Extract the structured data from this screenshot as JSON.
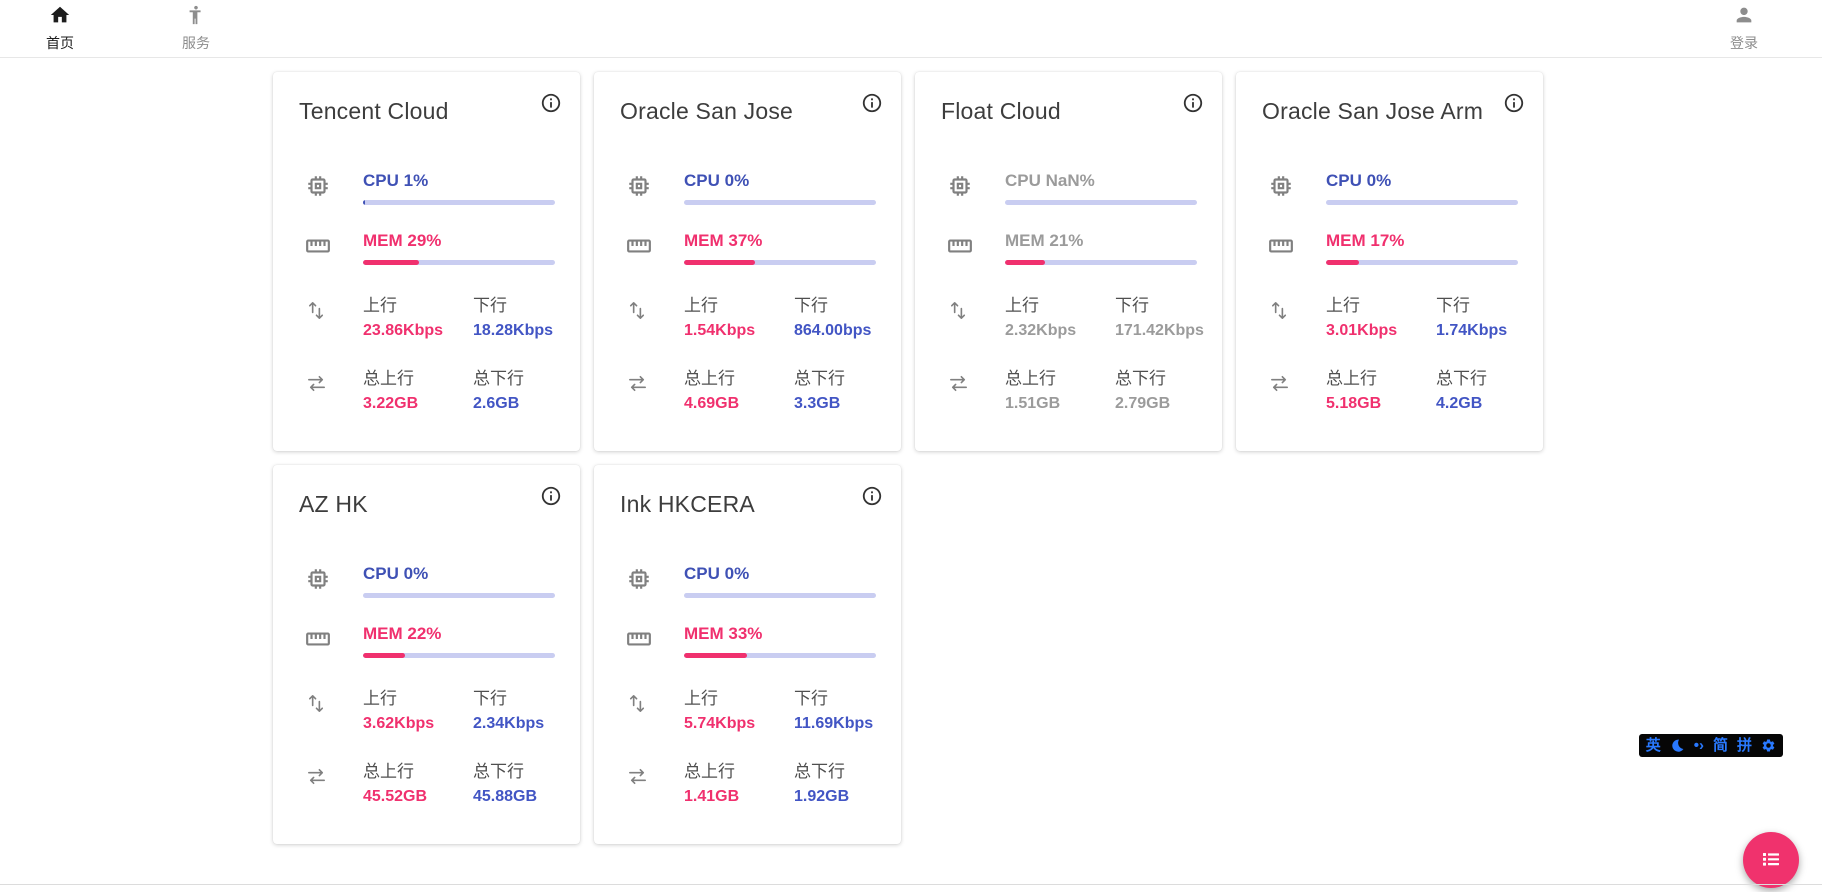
{
  "nav": {
    "home": {
      "label": "首页"
    },
    "services": {
      "label": "服务"
    },
    "login": {
      "label": "登录"
    }
  },
  "labels": {
    "upload": "上行",
    "download": "下行",
    "total_upload": "总上行",
    "total_download": "总下行"
  },
  "colors": {
    "accent_blue": "#3f51b5",
    "accent_pink": "#f0306e",
    "bar_track": "#c9cdf1",
    "offline_gray": "#9b9b9b",
    "fab_pink": "#f0326d",
    "ime_blue": "#2979ff"
  },
  "servers": [
    {
      "name": "Tencent Cloud",
      "cpu_label": "CPU 1%",
      "cpu_pct": 1,
      "mem_label": "MEM 29%",
      "mem_pct": 29,
      "upload": "23.86Kbps",
      "download": "18.28Kbps",
      "total_upload": "3.22GB",
      "total_download": "2.6GB",
      "online": true
    },
    {
      "name": "Oracle San Jose",
      "cpu_label": "CPU 0%",
      "cpu_pct": 0,
      "mem_label": "MEM 37%",
      "mem_pct": 37,
      "upload": "1.54Kbps",
      "download": "864.00bps",
      "total_upload": "4.69GB",
      "total_download": "3.3GB",
      "online": true
    },
    {
      "name": "Float Cloud",
      "cpu_label": "CPU NaN%",
      "cpu_pct": 0,
      "mem_label": "MEM 21%",
      "mem_pct": 21,
      "upload": "2.32Kbps",
      "download": "171.42Kbps",
      "total_upload": "1.51GB",
      "total_download": "2.79GB",
      "online": false
    },
    {
      "name": "Oracle San Jose Arm",
      "cpu_label": "CPU 0%",
      "cpu_pct": 0,
      "mem_label": "MEM 17%",
      "mem_pct": 17,
      "upload": "3.01Kbps",
      "download": "1.74Kbps",
      "total_upload": "5.18GB",
      "total_download": "4.2GB",
      "online": true
    },
    {
      "name": "AZ HK",
      "cpu_label": "CPU 0%",
      "cpu_pct": 0,
      "mem_label": "MEM 22%",
      "mem_pct": 22,
      "upload": "3.62Kbps",
      "download": "2.34Kbps",
      "total_upload": "45.52GB",
      "total_download": "45.88GB",
      "online": true
    },
    {
      "name": "Ink HKCERA",
      "cpu_label": "CPU 0%",
      "cpu_pct": 0,
      "mem_label": "MEM 33%",
      "mem_pct": 33,
      "upload": "5.74Kbps",
      "download": "11.69Kbps",
      "total_upload": "1.41GB",
      "total_download": "1.92GB",
      "online": true
    }
  ],
  "ime": {
    "english_mode": "英",
    "punctuation": "•›",
    "simplified": "简",
    "pinyin": "拼"
  }
}
